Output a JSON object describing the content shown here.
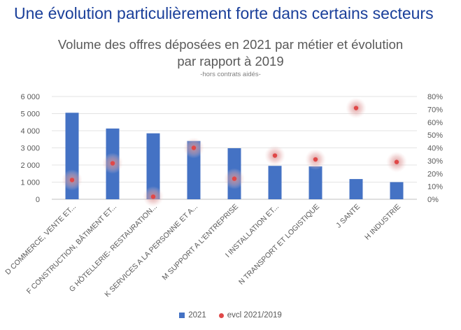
{
  "headline": "Une évolution particulièrement forte dans certains secteurs",
  "chart_data": {
    "type": "bar",
    "title_line1": "Volume des offres déposées en 2021 par métier et évolution",
    "title_line2": "par rapport à 2019",
    "subtitle": "-hors contrats aidés-",
    "categories": [
      "D COMMERCE, VENTE ET...",
      "F CONSTRUCTION, BÂTIMENT ET...",
      "G HÔTELLERIE- RESTAURATION...",
      "K SERVICES A LA PERSONNE ET A...",
      "M SUPPORT A L'ENTREPRISE",
      "I INSTALLATION ET...",
      "N TRANSPORT ET LOGISTIQUE",
      "J SANTE",
      "H INDUSTRIE"
    ],
    "series": [
      {
        "name": "2021",
        "type": "bar",
        "axis": "left",
        "color": "#4472c4",
        "values": [
          5050,
          4130,
          3850,
          3400,
          2980,
          1950,
          1920,
          1180,
          1000
        ]
      },
      {
        "name": "evcl 2021/2019",
        "type": "scatter",
        "axis": "right",
        "color": "#e04848",
        "values": [
          0.15,
          0.28,
          0.02,
          0.4,
          0.16,
          0.34,
          0.31,
          0.71,
          0.29
        ]
      }
    ],
    "ylim_left": [
      0,
      6000
    ],
    "yticks_left": [
      "0",
      "1 000",
      "2 000",
      "3 000",
      "4 000",
      "5 000",
      "6 000"
    ],
    "ylim_right": [
      0,
      0.8
    ],
    "yticks_right": [
      "0%",
      "10%",
      "20%",
      "30%",
      "40%",
      "50%",
      "60%",
      "70%",
      "80%"
    ],
    "grid": true,
    "legend_position": "bottom"
  }
}
